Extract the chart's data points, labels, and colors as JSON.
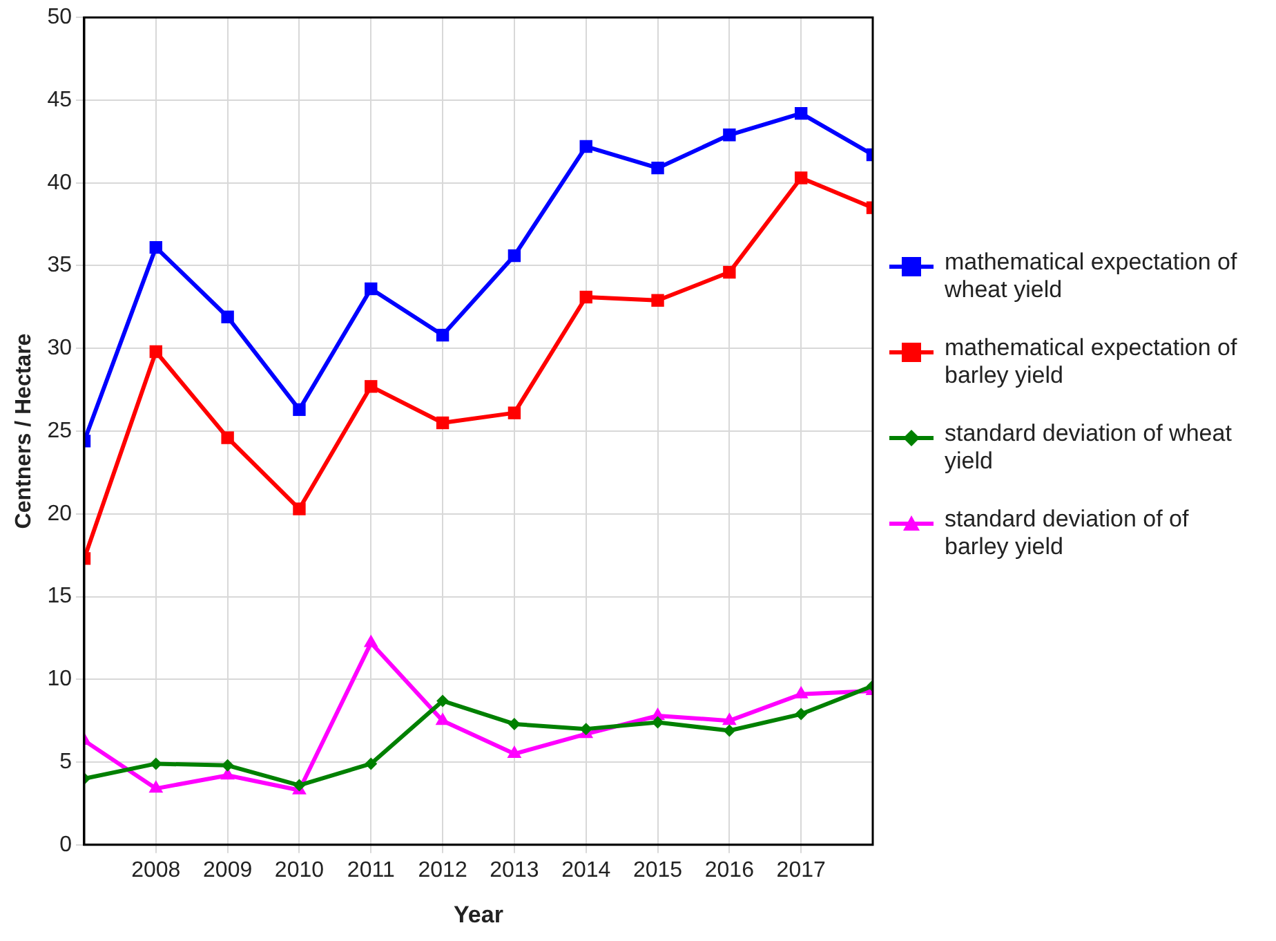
{
  "chart_data": {
    "type": "line",
    "xlabel": "Year",
    "ylabel": "Centners / Hectare",
    "x": [
      2007,
      2008,
      2009,
      2010,
      2011,
      2012,
      2013,
      2014,
      2015,
      2016,
      2017,
      2018
    ],
    "xlim": [
      2007,
      2018
    ],
    "xticks": [
      2008,
      2009,
      2010,
      2011,
      2012,
      2013,
      2014,
      2015,
      2016,
      2017
    ],
    "ylim": [
      0,
      50
    ],
    "yticks": [
      0,
      5,
      10,
      15,
      20,
      25,
      30,
      35,
      40,
      45,
      50
    ],
    "grid": true,
    "legend": "right",
    "line_style": "solid",
    "series": [
      {
        "name": "mathematical expectation of wheat yield",
        "color": "#0000ff",
        "marker": "square",
        "values": [
          24.4,
          36.1,
          31.9,
          26.3,
          33.6,
          30.8,
          35.6,
          42.2,
          40.9,
          42.9,
          44.2,
          41.7
        ]
      },
      {
        "name": "mathematical expectation of barley yield",
        "color": "#ff0000",
        "marker": "square",
        "values": [
          17.3,
          29.8,
          24.6,
          20.3,
          27.7,
          25.5,
          26.1,
          33.1,
          32.9,
          34.6,
          40.3,
          38.5
        ]
      },
      {
        "name": "standard deviation of wheat yield",
        "color": "#008000",
        "marker": "diamond",
        "values": [
          4.0,
          4.9,
          4.8,
          3.6,
          4.9,
          8.7,
          7.3,
          7.0,
          7.4,
          6.9,
          7.9,
          9.6
        ]
      },
      {
        "name": "standard deviation of of barley yield",
        "color": "#ff00ff",
        "marker": "triangle",
        "values": [
          6.3,
          3.4,
          4.2,
          3.3,
          12.2,
          7.5,
          5.5,
          6.7,
          7.8,
          7.5,
          9.1,
          9.3
        ]
      }
    ]
  }
}
